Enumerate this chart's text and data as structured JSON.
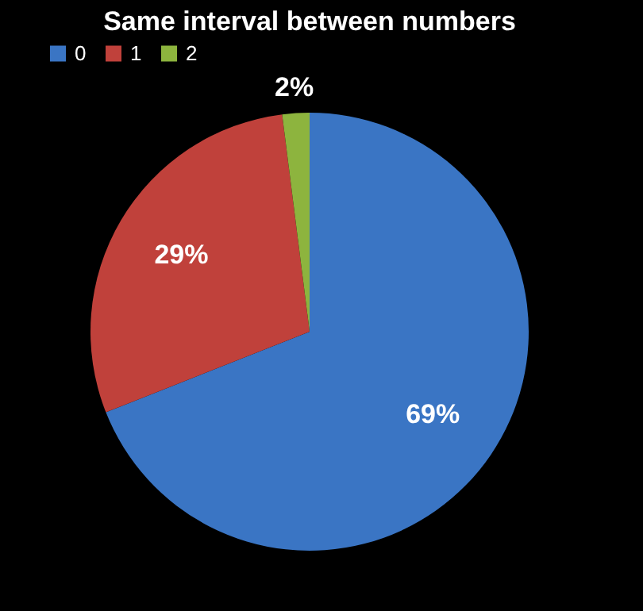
{
  "chart_data": {
    "type": "pie",
    "title": "Same interval between numbers",
    "categories": [
      "0",
      "1",
      "2"
    ],
    "values": [
      69,
      29,
      2
    ],
    "colors": [
      "#3a75c4",
      "#c0413b",
      "#8db43e"
    ],
    "value_labels": [
      "69%",
      "29%",
      "2%"
    ],
    "legend": "top"
  }
}
